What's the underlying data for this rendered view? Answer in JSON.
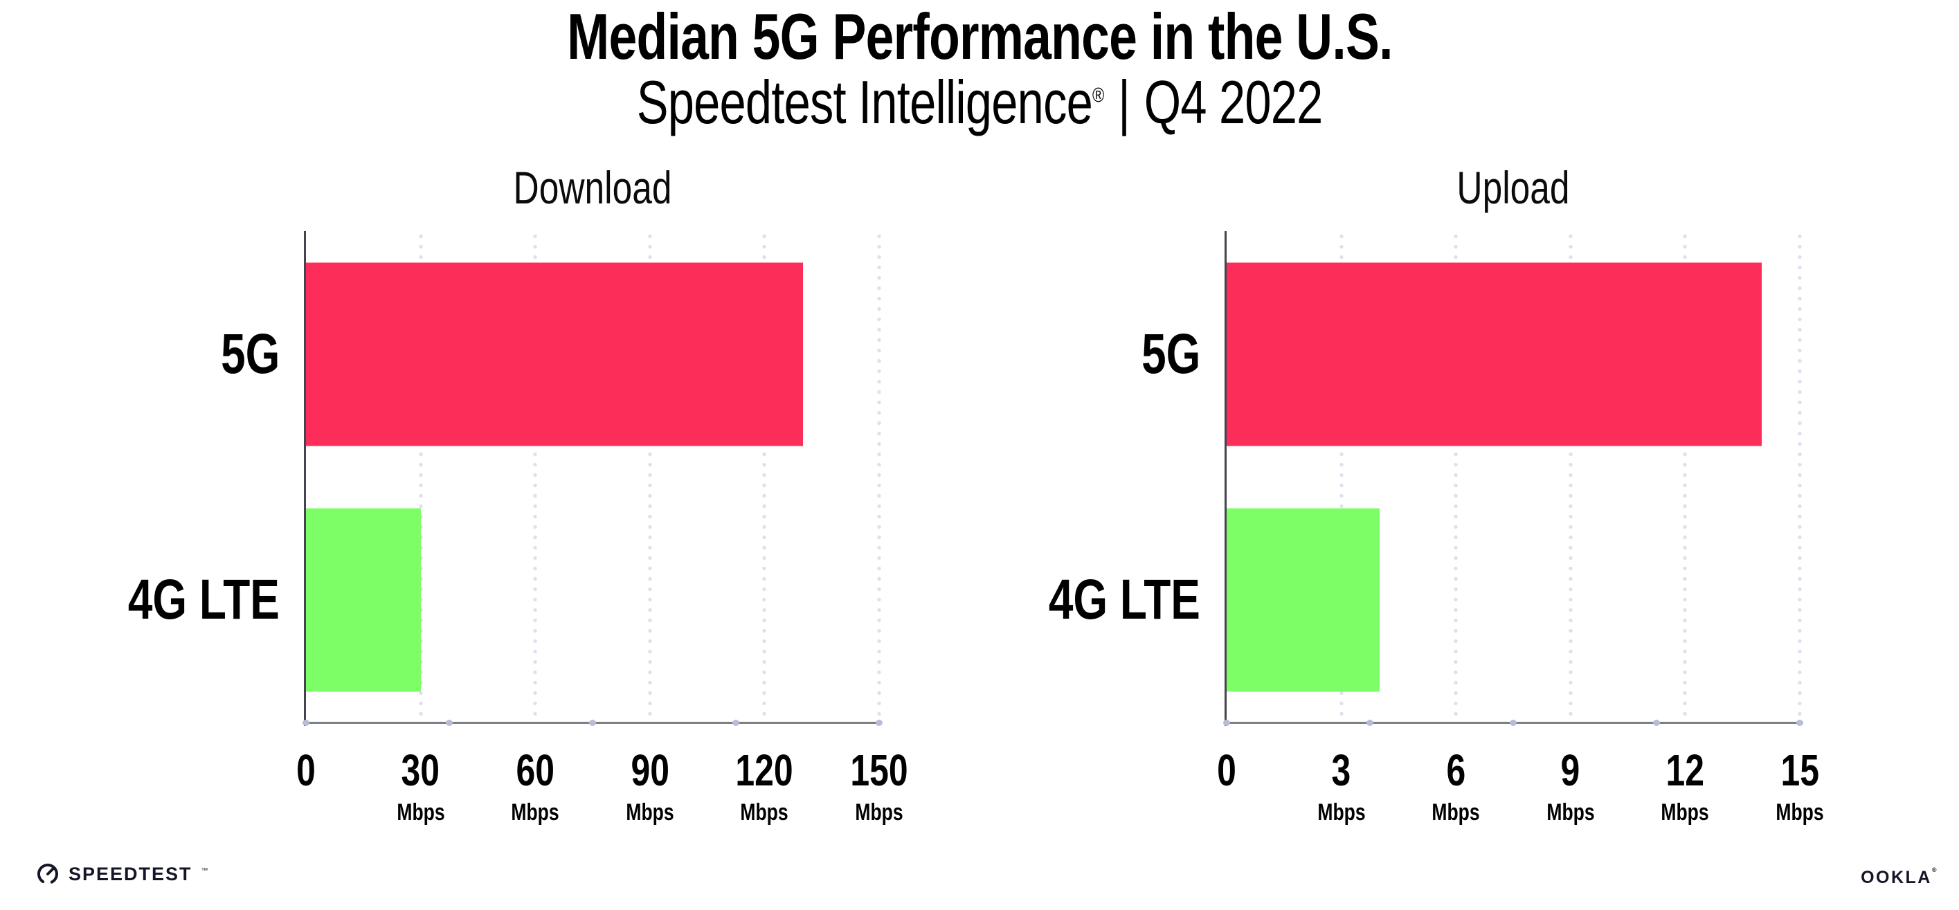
{
  "header": {
    "title": "Median 5G Performance in the U.S.",
    "subtitle": {
      "brand": "Speedtest Intelligence",
      "registered_mark": "®",
      "separator": "|",
      "period": "Q4 2022"
    }
  },
  "chart_data": [
    {
      "type": "bar",
      "orientation": "horizontal",
      "title": "Download",
      "categories": [
        "5G",
        "4G LTE"
      ],
      "values": [
        130,
        30
      ],
      "value_unit": "Mbps",
      "xlim": [
        0,
        150
      ],
      "xticks": [
        0,
        30,
        60,
        90,
        120,
        150
      ],
      "xtick_unit_label": "Mbps",
      "bar_colors": [
        "#FC2D58",
        "#7DFD66"
      ],
      "grid": "dotted-vertical",
      "legend": "none"
    },
    {
      "type": "bar",
      "orientation": "horizontal",
      "title": "Upload",
      "categories": [
        "5G",
        "4G LTE"
      ],
      "values": [
        14,
        4
      ],
      "value_unit": "Mbps",
      "xlim": [
        0,
        15
      ],
      "xticks": [
        0,
        3,
        6,
        9,
        12,
        15
      ],
      "xtick_unit_label": "Mbps",
      "bar_colors": [
        "#FC2D58",
        "#7DFD66"
      ],
      "grid": "dotted-vertical",
      "legend": "none"
    }
  ],
  "footer": {
    "speedtest": {
      "label": "SPEEDTEST",
      "trademark": "™",
      "icon": "speedtest-gauge-icon"
    },
    "ookla": {
      "label": "OOKLA",
      "registered_mark": "®"
    }
  },
  "style": {
    "colors": {
      "title_text": "#000000",
      "bar_5g": "#FC2D58",
      "bar_4g": "#7DFD66",
      "x_axis_line": "#7E8086",
      "y_axis_line": "#43444F",
      "grid_dot": "#DEE0EC",
      "axis_tick_dot": "#B8BCD4",
      "logo_text": "#141526"
    }
  }
}
